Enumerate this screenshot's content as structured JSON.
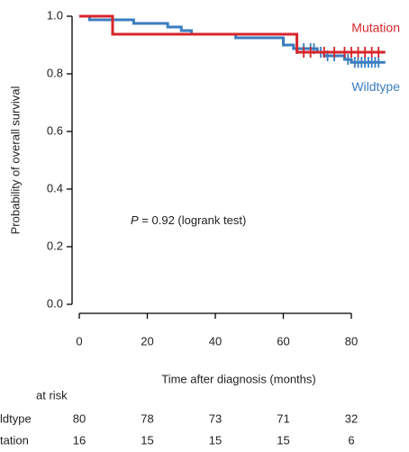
{
  "chart_data": {
    "type": "km",
    "y_label": "Probability of overall survival",
    "x_label": "Time after diagnosis (months)",
    "xlim": [
      0,
      80
    ],
    "xticks": [
      0,
      20,
      40,
      60,
      80
    ],
    "ylim": [
      0,
      1
    ],
    "yticks": [
      {
        "value": 0,
        "label": "0.0"
      },
      0.2,
      0.4,
      0.6,
      0.8,
      {
        "value": 1,
        "label": "1.0"
      }
    ],
    "annotation": {
      "italic": "P",
      "text": "= 0.92 (logrank test)"
    },
    "series": [
      {
        "name": "Wildtype",
        "color": "#3a7dbf",
        "x": [
          0,
          3,
          16,
          26,
          30,
          33,
          46,
          60,
          63,
          70,
          72,
          78,
          80,
          90
        ],
        "values": [
          1,
          0.9875,
          0.975,
          0.9625,
          0.95,
          0.9375,
          0.925,
          0.9,
          0.8875,
          0.875,
          0.8625,
          0.85,
          0.84,
          0.84
        ],
        "censor_x": [
          64,
          66,
          68,
          69,
          71,
          73,
          75,
          79,
          81,
          82,
          83,
          84,
          85,
          86,
          87,
          88
        ],
        "censor_values": [
          0.8875,
          0.8875,
          0.8875,
          0.8875,
          0.875,
          0.8625,
          0.8625,
          0.85,
          0.84,
          0.84,
          0.84,
          0.84,
          0.84,
          0.84,
          0.84,
          0.84
        ]
      },
      {
        "name": "Mutation",
        "color": "#d7262b",
        "x": [
          0,
          9.8,
          64,
          90
        ],
        "values": [
          1,
          0.9375,
          0.875,
          0.875
        ],
        "censor_x": [
          66,
          68,
          72,
          75,
          78,
          80,
          82,
          84,
          86,
          88
        ],
        "censor_values": [
          0.875,
          0.875,
          0.875,
          0.875,
          0.875,
          0.875,
          0.875,
          0.875,
          0.875,
          0.875
        ]
      }
    ],
    "risk_table": {
      "title": "at risk",
      "rows": [
        {
          "label": "ldtype",
          "counts": [
            80,
            78,
            73,
            71,
            32
          ]
        },
        {
          "label": "tation",
          "counts": [
            16,
            15,
            15,
            15,
            6
          ]
        }
      ]
    }
  }
}
